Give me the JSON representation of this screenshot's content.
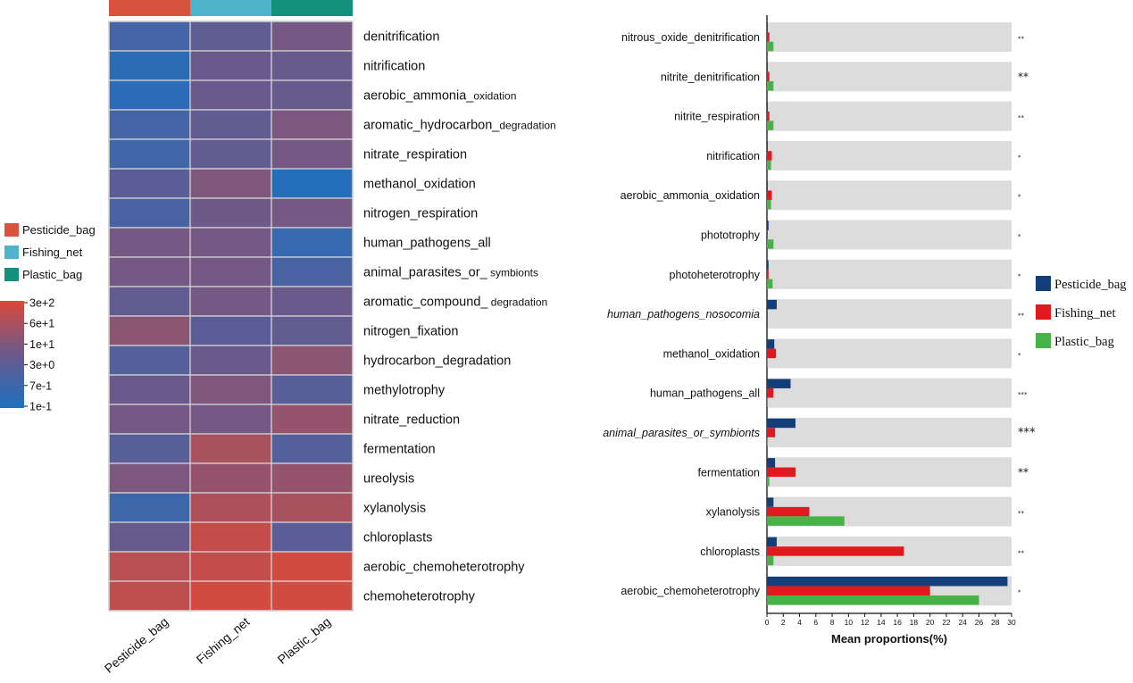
{
  "chart_data": [
    {
      "type": "heatmap",
      "title": "",
      "columns": [
        "Pesticide_bag",
        "Fishing_net",
        "Plastic_bag"
      ],
      "rows": [
        {
          "main": "denitrification",
          "sub": ""
        },
        {
          "main": "nitrification",
          "sub": ""
        },
        {
          "main": "aerobic_ammonia_",
          "sub": "oxidation"
        },
        {
          "main": "aromatic_hydrocarbon_",
          "sub": "degradation"
        },
        {
          "main": "nitrate_respiration",
          "sub": ""
        },
        {
          "main": "methanol_oxidation",
          "sub": ""
        },
        {
          "main": "nitrogen_respiration",
          "sub": ""
        },
        {
          "main": "human_pathogens_all",
          "sub": ""
        },
        {
          "main": "animal_parasites_or_",
          "sub": " symbionts"
        },
        {
          "main": "aromatic_compound_",
          "sub": " degradation"
        },
        {
          "main": "nitrogen_fixation",
          "sub": ""
        },
        {
          "main": "hydrocarbon_degradation",
          "sub": ""
        },
        {
          "main": "methylotrophy",
          "sub": ""
        },
        {
          "main": "nitrate_reduction",
          "sub": ""
        },
        {
          "main": "fermentation",
          "sub": ""
        },
        {
          "main": "ureolysis",
          "sub": ""
        },
        {
          "main": "xylanolysis",
          "sub": ""
        },
        {
          "main": "chloroplasts",
          "sub": ""
        },
        {
          "main": "aerobic_chemoheterotrophy",
          "sub": ""
        },
        {
          "main": "chemoheterotrophy",
          "sub": ""
        }
      ],
      "values": [
        [
          0.25,
          0.42,
          0.55
        ],
        [
          0.08,
          0.5,
          0.48
        ],
        [
          0.07,
          0.5,
          0.48
        ],
        [
          0.25,
          0.45,
          0.58
        ],
        [
          0.22,
          0.45,
          0.55
        ],
        [
          0.4,
          0.6,
          0.03
        ],
        [
          0.28,
          0.52,
          0.55
        ],
        [
          0.55,
          0.55,
          0.15
        ],
        [
          0.55,
          0.55,
          0.28
        ],
        [
          0.45,
          0.55,
          0.5
        ],
        [
          0.65,
          0.4,
          0.45
        ],
        [
          0.35,
          0.5,
          0.65
        ],
        [
          0.5,
          0.6,
          0.38
        ],
        [
          0.55,
          0.55,
          0.7
        ],
        [
          0.38,
          0.78,
          0.35
        ],
        [
          0.58,
          0.7,
          0.7
        ],
        [
          0.2,
          0.8,
          0.78
        ],
        [
          0.48,
          0.9,
          0.4
        ],
        [
          0.85,
          0.9,
          0.97
        ],
        [
          0.88,
          0.97,
          0.97
        ]
      ],
      "value_scale": "normalized 0 (blue) to 1 (red)",
      "colorbar_ticks": [
        "3e+2",
        "6e+1",
        "1e+1",
        "3e+0",
        "7e-1",
        "1e-1"
      ],
      "legend": [
        {
          "label": "Pesticide_bag",
          "color": "#d9533c"
        },
        {
          "label": "Fishing_net",
          "color": "#4fb3c9"
        },
        {
          "label": "Plastic_bag",
          "color": "#14917d"
        }
      ],
      "colors": {
        "low": "#1f6fbf",
        "mid": "#6a5a8c",
        "high": "#d94a3b"
      }
    },
    {
      "type": "bar",
      "orientation": "horizontal",
      "xlabel": "Mean proportions(%)",
      "xlim": [
        0,
        30
      ],
      "xticks": [
        0,
        2,
        4,
        6,
        8,
        10,
        12,
        14,
        16,
        18,
        20,
        22,
        24,
        26,
        28,
        30
      ],
      "categories": [
        {
          "label": "nitrous_oxide_denitrification",
          "italic": false,
          "sig": "**"
        },
        {
          "label": "nitrite_denitrification",
          "italic": false,
          "sig": "**"
        },
        {
          "label": "nitrite_respiration",
          "italic": false,
          "sig": "**"
        },
        {
          "label": "nitrification",
          "italic": false,
          "sig": "*"
        },
        {
          "label": "aerobic_ammonia_oxidation",
          "italic": false,
          "sig": "*"
        },
        {
          "label": "phototrophy",
          "italic": false,
          "sig": "*"
        },
        {
          "label": "photoheterotrophy",
          "italic": false,
          "sig": "*"
        },
        {
          "label": "human_pathogens_nosocomia",
          "italic": true,
          "sig": "**"
        },
        {
          "label": "methanol_oxidation",
          "italic": false,
          "sig": "*"
        },
        {
          "label": "human_pathogens_all",
          "italic": false,
          "sig": "***"
        },
        {
          "label": "animal_parasites_or_symbionts",
          "italic": true,
          "sig": "***"
        },
        {
          "label": "fermentation",
          "italic": false,
          "sig": "**"
        },
        {
          "label": "xylanolysis",
          "italic": false,
          "sig": "**"
        },
        {
          "label": "chloroplasts",
          "italic": false,
          "sig": "**"
        },
        {
          "label": "aerobic_chemoheterotrophy",
          "italic": false,
          "sig": "*"
        }
      ],
      "series": [
        {
          "name": "Pesticide_bag",
          "color": "#123f7a",
          "values": [
            0.1,
            0.1,
            0.1,
            0.1,
            0.1,
            0.2,
            0.2,
            1.2,
            0.9,
            2.9,
            3.5,
            1.0,
            0.8,
            1.2,
            29.5
          ]
        },
        {
          "name": "Fishing_net",
          "color": "#e0191f",
          "values": [
            0.3,
            0.3,
            0.3,
            0.6,
            0.6,
            0.1,
            0.2,
            0.0,
            1.1,
            0.8,
            1.0,
            3.5,
            5.2,
            16.8,
            20.0
          ]
        },
        {
          "name": "Plastic_bag",
          "color": "#47b347",
          "values": [
            0.8,
            0.8,
            0.8,
            0.5,
            0.5,
            0.8,
            0.7,
            0.0,
            0.1,
            0.1,
            0.1,
            0.3,
            9.5,
            0.8,
            26.0
          ]
        }
      ]
    }
  ]
}
